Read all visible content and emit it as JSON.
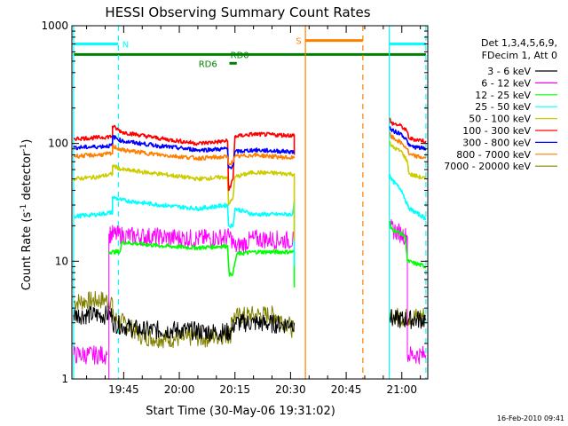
{
  "chart_data": {
    "type": "line",
    "title": "HESSI Observing Summary Count Rates",
    "xlabel": "Start Time (30-May-06 19:31:02)",
    "ylabel_parts": [
      "Count Rate (s",
      "-1",
      " detector",
      "-1",
      ")"
    ],
    "x_unit": "minutes after 19:00 UT",
    "xlim": [
      31.03,
      127
    ],
    "ylim": [
      1,
      1000
    ],
    "y_scale": "log",
    "x_ticks": [
      {
        "value": 45,
        "label": "19:45"
      },
      {
        "value": 60,
        "label": "20:00"
      },
      {
        "value": 75,
        "label": "20:15"
      },
      {
        "value": 90,
        "label": "20:30"
      },
      {
        "value": 105,
        "label": "20:45"
      },
      {
        "value": 120,
        "label": "21:00"
      }
    ],
    "y_ticks": [
      {
        "value": 1,
        "label": "1"
      },
      {
        "value": 10,
        "label": "10"
      },
      {
        "value": 100,
        "label": "100"
      },
      {
        "value": 1000,
        "label": "1000"
      }
    ],
    "legend_header": [
      "Det 1,3,4,5,6,9,",
      "FDecim 1, Att 0"
    ],
    "legend_position": "right",
    "timestamp": "16-Feb-2010 09:41",
    "intervals": [
      {
        "label": "N",
        "color": "#00ffff",
        "y": 700,
        "segments": [
          [
            31.5,
            43.5
          ],
          [
            116.6,
            126.5
          ]
        ],
        "label_at": 45.5
      },
      {
        "label": "S",
        "color": "#ff7f00",
        "y": 750,
        "segments": [
          [
            94,
            109.5
          ]
        ],
        "label_at": 92.2
      },
      {
        "label": "RD0",
        "color": "#008000",
        "y": 570,
        "segments": [
          [
            31.5,
            126.5
          ]
        ],
        "label_at": 76.3
      },
      {
        "label": "RD6",
        "color": "#008000",
        "y": 480,
        "segments": [
          [
            73.5,
            75.5
          ]
        ],
        "label_at": 67.7
      }
    ],
    "vlines": [
      {
        "x": 31.5,
        "color": "#00ffff",
        "style": "solid"
      },
      {
        "x": 43.6,
        "color": "#00ffff",
        "style": "dashed"
      },
      {
        "x": 94,
        "color": "#ff7f00",
        "style": "solid"
      },
      {
        "x": 109.5,
        "color": "#ff7f00",
        "style": "dashed"
      },
      {
        "x": 116.6,
        "color": "#00ffff",
        "style": "solid"
      },
      {
        "x": 126.5,
        "color": "#00ffff",
        "style": "dashed"
      }
    ],
    "series": [
      {
        "name": "3 - 6 keV",
        "color": "#000000",
        "segments": [
          {
            "x": [
              31.5,
              40,
              42
            ],
            "y": [
              3.5,
              3.5,
              3.5
            ]
          },
          {
            "x": [
              42,
              45,
              50,
              60,
              70,
              74,
              75,
              80,
              88,
              90,
              91
            ],
            "y": [
              3.0,
              2.8,
              2.6,
              2.6,
              2.5,
              2.5,
              3.0,
              3.0,
              2.9,
              3.0,
              3.0
            ]
          },
          {
            "x": [
              116.8,
              118,
              122,
              124,
              126.5
            ],
            "y": [
              3.3,
              3.2,
              3.2,
              3.2,
              3.2
            ]
          }
        ]
      },
      {
        "name": "6 - 12 keV",
        "color": "#ff00ff",
        "segments": [
          {
            "x": [
              31.5,
              40.5
            ],
            "y": [
              1.6,
              1.6
            ]
          },
          {
            "x": [
              41,
              41,
              45,
              55,
              65,
              74,
              75,
              80,
              91,
              91
            ],
            "y": [
              1.0,
              17,
              16.5,
              16,
              15.5,
              16,
              13,
              15.5,
              15,
              9
            ]
          },
          {
            "x": [
              116.8,
              117,
              120,
              121.5,
              121.5,
              126.5
            ],
            "y": [
              22,
              19,
              17,
              16,
              1.6,
              1.6
            ]
          }
        ]
      },
      {
        "name": "12 - 25 keV",
        "color": "#00ff00",
        "segments": [
          {
            "x": [
              41,
              44,
              44.5,
              55,
              65,
              73,
              73.5,
              74.5,
              75.5,
              80,
              91,
              91
            ],
            "y": [
              12,
              12,
              14.5,
              13.5,
              13,
              13.5,
              7.5,
              8,
              11.5,
              12,
              12,
              6
            ]
          },
          {
            "x": [
              116.8,
              117,
              120,
              121,
              121.5,
              126.5
            ],
            "y": [
              22,
              19,
              17,
              16,
              10,
              9
            ]
          }
        ]
      },
      {
        "name": "25 - 50 keV",
        "color": "#00ffff",
        "segments": [
          {
            "x": [
              31.5,
              38,
              42,
              42,
              44.5,
              55,
              65,
              73,
              73.3,
              74.5,
              75,
              80,
              90.5,
              91,
              91
            ],
            "y": [
              24,
              25,
              26,
              35,
              33,
              30,
              28,
              30,
              20,
              20,
              28,
              25,
              25,
              33,
              9
            ]
          },
          {
            "x": [
              116.8,
              117,
              120,
              121.5,
              122,
              126.5
            ],
            "y": [
              55,
              50,
              40,
              30,
              28,
              23
            ]
          }
        ]
      },
      {
        "name": "50 - 100 keV",
        "color": "#cccc00",
        "segments": [
          {
            "x": [
              31.5,
              38,
              42,
              42,
              44.5,
              55,
              65,
              73,
              73.3,
              74.5,
              75,
              80,
              91,
              91
            ],
            "y": [
              50,
              52,
              55,
              65,
              60,
              55,
              50,
              52,
              30,
              35,
              52,
              57,
              55,
              15
            ]
          },
          {
            "x": [
              116.8,
              117,
              120,
              121.5,
              122,
              126.5
            ],
            "y": [
              105,
              95,
              85,
              70,
              55,
              50
            ]
          }
        ]
      },
      {
        "name": "100 - 300 keV",
        "color": "#ff0000",
        "segments": [
          {
            "x": [
              31.5,
              38,
              42,
              42,
              44.5,
              55,
              65,
              73,
              73.3,
              74.5,
              75,
              80,
              91,
              91
            ],
            "y": [
              110,
              112,
              115,
              140,
              125,
              110,
              100,
              105,
              40,
              50,
              115,
              120,
              117,
              80
            ]
          },
          {
            "x": [
              116.8,
              117,
              120,
              121.5,
              122,
              126.5
            ],
            "y": [
              165,
              150,
              140,
              125,
              110,
              105
            ]
          }
        ]
      },
      {
        "name": "300 - 800 keV",
        "color": "#0000ff",
        "segments": [
          {
            "x": [
              31.5,
              38,
              42,
              42,
              44.5,
              55,
              65,
              73,
              73.3,
              74.5,
              75,
              80,
              91
            ],
            "y": [
              92,
              94,
              96,
              115,
              105,
              95,
              88,
              90,
              62,
              65,
              85,
              88,
              85
            ]
          },
          {
            "x": [
              116.8,
              117,
              120,
              121.5,
              122,
              126.5
            ],
            "y": [
              140,
              130,
              120,
              105,
              95,
              90
            ]
          }
        ]
      },
      {
        "name": "800 - 7000 keV",
        "color": "#ff7f00",
        "segments": [
          {
            "x": [
              31.5,
              38,
              42,
              42,
              44.5,
              55,
              65,
              73,
              73.3,
              74.5,
              75,
              80,
              91
            ],
            "y": [
              78,
              80,
              82,
              95,
              88,
              80,
              75,
              77,
              67,
              70,
              77,
              80,
              75
            ]
          },
          {
            "x": [
              116.8,
              117,
              120,
              121.5,
              122,
              126.5
            ],
            "y": [
              125,
              115,
              100,
              90,
              80,
              75
            ]
          }
        ]
      },
      {
        "name": "7000 - 20000 keV",
        "color": "#808000",
        "segments": [
          {
            "x": [
              31.5,
              35,
              40,
              42,
              42,
              45,
              50,
              55,
              62,
              64,
              66,
              70,
              74,
              74,
              76,
              80,
              86,
              90,
              91
            ],
            "y": [
              4.5,
              4.6,
              4.7,
              4.6,
              3.3,
              3.0,
              2.3,
              2.2,
              2.2,
              2.3,
              2.2,
              2.3,
              2.4,
              3.3,
              3.4,
              3.5,
              3.5,
              2.8,
              2.5
            ]
          },
          {
            "x": [
              116.8,
              118,
              122,
              124,
              126.5
            ],
            "y": [
              3.3,
              3.4,
              3.3,
              3.4,
              3.5
            ]
          }
        ]
      }
    ]
  }
}
